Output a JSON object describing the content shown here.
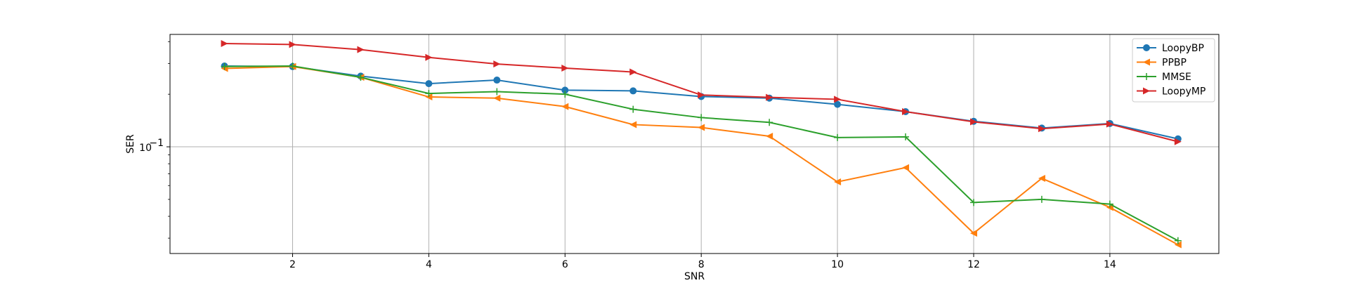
{
  "chart_data": {
    "type": "line",
    "title": "",
    "xlabel": "SNR",
    "ylabel": "SER",
    "yscale": "log",
    "xlim": [
      0.2,
      15.6
    ],
    "ylim": [
      0.0245,
      0.44
    ],
    "grid": true,
    "legend_position": "top-right",
    "x_ticks": [
      2,
      4,
      6,
      8,
      10,
      12,
      14
    ],
    "x_tick_labels": [
      "2",
      "4",
      "6",
      "8",
      "10",
      "12",
      "14"
    ],
    "y_ticks": [
      0.1
    ],
    "y_tick_labels": [
      "10",
      "−1"
    ],
    "x": [
      1,
      2,
      3,
      4,
      5,
      6,
      7,
      8,
      9,
      10,
      11,
      12,
      13,
      14,
      15
    ],
    "series": [
      {
        "name": "LoopyBP",
        "color": "#1f77b4",
        "marker": "circle",
        "values": [
          0.29,
          0.288,
          0.254,
          0.23,
          0.241,
          0.211,
          0.209,
          0.194,
          0.19,
          0.175,
          0.159,
          0.14,
          0.128,
          0.136,
          0.111
        ]
      },
      {
        "name": "PPBP",
        "color": "#ff7f0e",
        "marker": "triangle-left",
        "values": [
          0.281,
          0.288,
          0.25,
          0.193,
          0.19,
          0.17,
          0.134,
          0.129,
          0.115,
          0.063,
          0.076,
          0.032,
          0.066,
          0.045,
          0.0275
        ]
      },
      {
        "name": "MMSE",
        "color": "#2ca02c",
        "marker": "plus",
        "values": [
          0.288,
          0.29,
          0.25,
          0.202,
          0.207,
          0.2,
          0.164,
          0.147,
          0.138,
          0.113,
          0.114,
          0.048,
          0.05,
          0.047,
          0.029
        ]
      },
      {
        "name": "LoopyMP",
        "color": "#d62728",
        "marker": "triangle-right",
        "values": [
          0.39,
          0.385,
          0.36,
          0.325,
          0.298,
          0.282,
          0.268,
          0.198,
          0.192,
          0.187,
          0.159,
          0.139,
          0.127,
          0.135,
          0.107
        ]
      }
    ]
  }
}
